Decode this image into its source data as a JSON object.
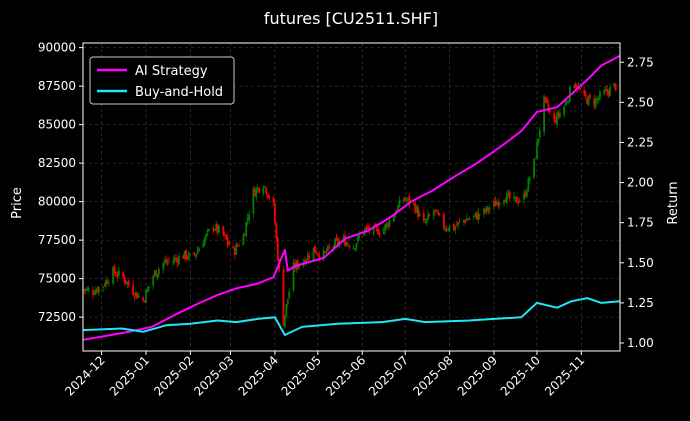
{
  "chart_data": {
    "type": "candlestick+line",
    "title": "futures [CU2511.SHF]",
    "ylabel": "Price",
    "y2label": "Return",
    "ylim": [
      70300,
      90300
    ],
    "y2lim": [
      0.95,
      2.87
    ],
    "x_start": "2024-11-18",
    "x_end": "2025-11-28",
    "x_ticks": [
      "2024-12",
      "2025-01",
      "2025-02",
      "2025-03",
      "2025-04",
      "2025-05",
      "2025-06",
      "2025-07",
      "2025-08",
      "2025-09",
      "2025-10",
      "2025-11"
    ],
    "y_ticks": [
      72500,
      75000,
      77500,
      80000,
      82500,
      85000,
      87500,
      90000
    ],
    "y_tick_labels": [
      "72500",
      "75000",
      "77500",
      "80000",
      "82500",
      "85000",
      "87500",
      "90000"
    ],
    "y2_ticks": [
      1.0,
      1.25,
      1.5,
      1.75,
      2.0,
      2.25,
      2.5,
      2.75
    ],
    "y2_tick_labels": [
      "1.00",
      "1.25",
      "1.50",
      "1.75",
      "2.00",
      "2.25",
      "2.50",
      "2.75"
    ],
    "legend": {
      "position": "top-left",
      "entries": [
        "AI Strategy",
        "Buy-and-Hold"
      ]
    },
    "grid": true,
    "colors": {
      "background": "#000000",
      "up": "#008000",
      "down": "#ff0000",
      "ai_strategy": "#ff00ff",
      "buy_and_hold": "#22e6f2",
      "grid": "#444444",
      "text": "#ffffff"
    },
    "price_path": [
      [
        "2024-11-18",
        74300
      ],
      [
        "2024-11-25",
        74200
      ],
      [
        "2024-12-02",
        74600
      ],
      [
        "2024-12-09",
        75400
      ],
      [
        "2024-12-16",
        75100
      ],
      [
        "2024-12-23",
        74200
      ],
      [
        "2024-12-30",
        73600
      ],
      [
        "2025-01-06",
        75200
      ],
      [
        "2025-01-13",
        76000
      ],
      [
        "2025-01-20",
        76200
      ],
      [
        "2025-01-27",
        76500
      ],
      [
        "2025-02-03",
        76400
      ],
      [
        "2025-02-10",
        77500
      ],
      [
        "2025-02-17",
        78400
      ],
      [
        "2025-02-24",
        77800
      ],
      [
        "2025-03-03",
        76700
      ],
      [
        "2025-03-10",
        77800
      ],
      [
        "2025-03-17",
        80600
      ],
      [
        "2025-03-24",
        81200
      ],
      [
        "2025-03-31",
        79700
      ],
      [
        "2025-04-07",
        72200
      ],
      [
        "2025-04-14",
        75700
      ],
      [
        "2025-04-21",
        76200
      ],
      [
        "2025-04-28",
        76900
      ],
      [
        "2025-05-05",
        76500
      ],
      [
        "2025-05-12",
        77200
      ],
      [
        "2025-05-19",
        77500
      ],
      [
        "2025-05-26",
        77100
      ],
      [
        "2025-06-02",
        78200
      ],
      [
        "2025-06-09",
        78100
      ],
      [
        "2025-06-16",
        78200
      ],
      [
        "2025-06-23",
        79200
      ],
      [
        "2025-06-30",
        80200
      ],
      [
        "2025-07-07",
        79800
      ],
      [
        "2025-07-14",
        78500
      ],
      [
        "2025-07-21",
        79400
      ],
      [
        "2025-07-28",
        78400
      ],
      [
        "2025-08-04",
        78300
      ],
      [
        "2025-08-11",
        78800
      ],
      [
        "2025-08-18",
        79000
      ],
      [
        "2025-08-25",
        79300
      ],
      [
        "2025-09-01",
        79800
      ],
      [
        "2025-09-08",
        80400
      ],
      [
        "2025-09-15",
        80000
      ],
      [
        "2025-09-22",
        80300
      ],
      [
        "2025-09-29",
        82500
      ],
      [
        "2025-10-06",
        86500
      ],
      [
        "2025-10-13",
        85200
      ],
      [
        "2025-10-20",
        86200
      ],
      [
        "2025-10-27",
        87800
      ],
      [
        "2025-11-03",
        86700
      ],
      [
        "2025-11-10",
        86500
      ],
      [
        "2025-11-17",
        87000
      ],
      [
        "2025-11-24",
        87500
      ]
    ],
    "series": [
      {
        "name": "AI Strategy",
        "points": [
          [
            "2024-11-18",
            1.02
          ],
          [
            "2024-12-01",
            1.04
          ],
          [
            "2024-12-20",
            1.07
          ],
          [
            "2025-01-05",
            1.1
          ],
          [
            "2025-01-20",
            1.17
          ],
          [
            "2025-02-05",
            1.24
          ],
          [
            "2025-02-20",
            1.3
          ],
          [
            "2025-03-05",
            1.34
          ],
          [
            "2025-03-20",
            1.37
          ],
          [
            "2025-03-31",
            1.41
          ],
          [
            "2025-04-05",
            1.52
          ],
          [
            "2025-04-08",
            1.58
          ],
          [
            "2025-04-10",
            1.45
          ],
          [
            "2025-04-15",
            1.48
          ],
          [
            "2025-05-05",
            1.53
          ],
          [
            "2025-05-20",
            1.65
          ],
          [
            "2025-06-05",
            1.7
          ],
          [
            "2025-06-20",
            1.78
          ],
          [
            "2025-07-05",
            1.88
          ],
          [
            "2025-07-20",
            1.95
          ],
          [
            "2025-08-05",
            2.04
          ],
          [
            "2025-08-20",
            2.12
          ],
          [
            "2025-09-05",
            2.22
          ],
          [
            "2025-09-20",
            2.32
          ],
          [
            "2025-10-01",
            2.44
          ],
          [
            "2025-10-15",
            2.47
          ],
          [
            "2025-10-25",
            2.55
          ],
          [
            "2025-11-05",
            2.64
          ],
          [
            "2025-11-15",
            2.73
          ],
          [
            "2025-11-28",
            2.79
          ]
        ]
      },
      {
        "name": "Buy-and-Hold",
        "points": [
          [
            "2024-11-18",
            1.08
          ],
          [
            "2024-12-15",
            1.09
          ],
          [
            "2024-12-30",
            1.07
          ],
          [
            "2025-01-15",
            1.11
          ],
          [
            "2025-02-01",
            1.12
          ],
          [
            "2025-02-20",
            1.14
          ],
          [
            "2025-03-05",
            1.13
          ],
          [
            "2025-03-20",
            1.15
          ],
          [
            "2025-04-01",
            1.16
          ],
          [
            "2025-04-08",
            1.05
          ],
          [
            "2025-04-20",
            1.1
          ],
          [
            "2025-05-15",
            1.12
          ],
          [
            "2025-06-15",
            1.13
          ],
          [
            "2025-07-01",
            1.15
          ],
          [
            "2025-07-15",
            1.13
          ],
          [
            "2025-08-15",
            1.14
          ],
          [
            "2025-09-01",
            1.15
          ],
          [
            "2025-09-20",
            1.16
          ],
          [
            "2025-10-01",
            1.25
          ],
          [
            "2025-10-15",
            1.22
          ],
          [
            "2025-10-25",
            1.26
          ],
          [
            "2025-11-05",
            1.28
          ],
          [
            "2025-11-15",
            1.25
          ],
          [
            "2025-11-28",
            1.26
          ]
        ]
      }
    ]
  }
}
